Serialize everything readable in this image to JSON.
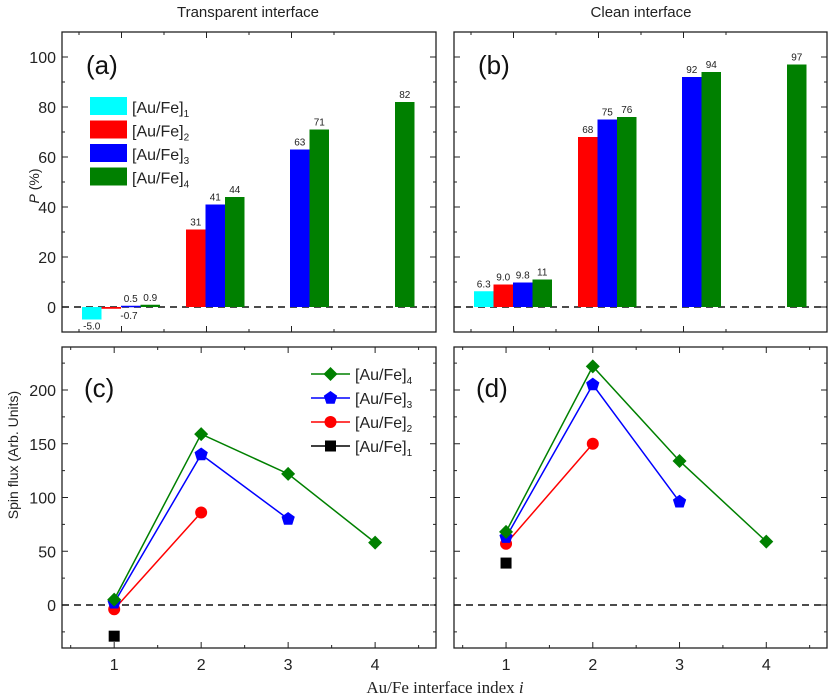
{
  "figure": {
    "xlabel": "Au/Fe interface index",
    "xlabel_var": "i"
  },
  "chart_data": [
    {
      "panel": "a",
      "type": "bar",
      "tag": "(a)",
      "title": "Transparent interface",
      "ylabel_var": "P",
      "ylabel_unit": " (%)",
      "ylim": [
        -10,
        110
      ],
      "yticks": [
        0,
        20,
        40,
        60,
        80,
        100
      ],
      "categories": [
        1,
        2,
        3,
        4
      ],
      "series": [
        {
          "name": "[Au/Fe]",
          "sub": "1",
          "color": "#00ffff",
          "values": [
            -5.0,
            null,
            null,
            null
          ],
          "labels": [
            "-5.0",
            null,
            null,
            null
          ]
        },
        {
          "name": "[Au/Fe]",
          "sub": "2",
          "color": "#ff0000",
          "values": [
            -0.7,
            31,
            null,
            null
          ],
          "labels": [
            "-0.7",
            "31",
            null,
            null
          ]
        },
        {
          "name": "[Au/Fe]",
          "sub": "3",
          "color": "#0000ff",
          "values": [
            0.5,
            41,
            63,
            null
          ],
          "labels": [
            "0.5",
            "41",
            "63",
            null
          ]
        },
        {
          "name": "[Au/Fe]",
          "sub": "4",
          "color": "#008000",
          "values": [
            0.9,
            44,
            71,
            82
          ],
          "labels": [
            "0.9",
            "44",
            "71",
            "82"
          ]
        }
      ],
      "legend": "upper-left",
      "zero_line": "dashed"
    },
    {
      "panel": "b",
      "type": "bar",
      "tag": "(b)",
      "title": "Clean interface",
      "ylim": [
        -10,
        110
      ],
      "yticks": [
        0,
        20,
        40,
        60,
        80,
        100
      ],
      "categories": [
        1,
        2,
        3,
        4
      ],
      "series": [
        {
          "name": "[Au/Fe]",
          "sub": "1",
          "color": "#00ffff",
          "values": [
            6.3,
            null,
            null,
            null
          ],
          "labels": [
            "6.3",
            null,
            null,
            null
          ]
        },
        {
          "name": "[Au/Fe]",
          "sub": "2",
          "color": "#ff0000",
          "values": [
            9.0,
            68,
            null,
            null
          ],
          "labels": [
            "9.0",
            "68",
            null,
            null
          ]
        },
        {
          "name": "[Au/Fe]",
          "sub": "3",
          "color": "#0000ff",
          "values": [
            9.8,
            75,
            92,
            null
          ],
          "labels": [
            "9.8",
            "75",
            "92",
            null
          ]
        },
        {
          "name": "[Au/Fe]",
          "sub": "4",
          "color": "#008000",
          "values": [
            11,
            76,
            94,
            97
          ],
          "labels": [
            "11",
            "76",
            "94",
            "97"
          ]
        }
      ],
      "zero_line": "dashed"
    },
    {
      "panel": "c",
      "type": "line",
      "tag": "(c)",
      "ylabel": "Spin flux (Arb. Units)",
      "ylim": [
        -40,
        240
      ],
      "yticks": [
        0,
        50,
        100,
        150,
        200
      ],
      "xlim": [
        0.4,
        4.7
      ],
      "xticks": [
        1,
        2,
        3,
        4
      ],
      "series": [
        {
          "name": "[Au/Fe]",
          "sub": "4",
          "color": "#008000",
          "marker": "diamond",
          "x": [
            1,
            2,
            3,
            4
          ],
          "y": [
            5,
            159,
            122,
            58
          ]
        },
        {
          "name": "[Au/Fe]",
          "sub": "3",
          "color": "#0000ff",
          "marker": "pentagon",
          "x": [
            1,
            2,
            3
          ],
          "y": [
            2,
            140,
            80
          ]
        },
        {
          "name": "[Au/Fe]",
          "sub": "2",
          "color": "#ff0000",
          "marker": "circle",
          "x": [
            1,
            2
          ],
          "y": [
            -4,
            86
          ]
        },
        {
          "name": "[Au/Fe]",
          "sub": "1",
          "color": "#000000",
          "marker": "square",
          "x": [
            1
          ],
          "y": [
            -29
          ]
        }
      ],
      "legend": "upper-right",
      "zero_line": "dashed"
    },
    {
      "panel": "d",
      "type": "line",
      "tag": "(d)",
      "ylim": [
        -40,
        240
      ],
      "yticks": [
        0,
        50,
        100,
        150,
        200
      ],
      "xlim": [
        0.4,
        4.7
      ],
      "xticks": [
        1,
        2,
        3,
        4
      ],
      "series": [
        {
          "name": "[Au/Fe]",
          "sub": "4",
          "color": "#008000",
          "marker": "diamond",
          "x": [
            1,
            2,
            3,
            4
          ],
          "y": [
            68,
            222,
            134,
            59
          ]
        },
        {
          "name": "[Au/Fe]",
          "sub": "3",
          "color": "#0000ff",
          "marker": "pentagon",
          "x": [
            1,
            2,
            3
          ],
          "y": [
            63,
            205,
            96
          ]
        },
        {
          "name": "[Au/Fe]",
          "sub": "2",
          "color": "#ff0000",
          "marker": "circle",
          "x": [
            1,
            2
          ],
          "y": [
            57,
            150
          ]
        },
        {
          "name": "[Au/Fe]",
          "sub": "1",
          "color": "#000000",
          "marker": "square",
          "x": [
            1
          ],
          "y": [
            39
          ]
        }
      ],
      "zero_line": "dashed"
    }
  ]
}
